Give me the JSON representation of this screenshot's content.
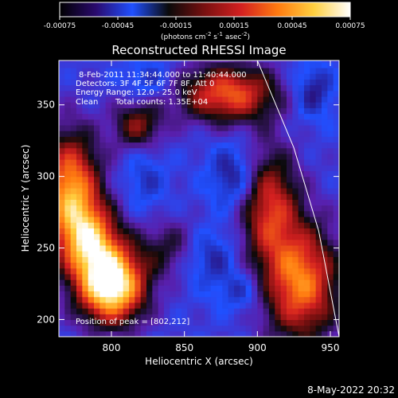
{
  "chart_data": {
    "type": "heatmap",
    "title": "Reconstructed RHESSI Image",
    "xlabel": "Heliocentric X (arcsec)",
    "ylabel": "Heliocentric Y (arcsec)",
    "xlim": [
      764,
      956
    ],
    "ylim": [
      188,
      381
    ],
    "x_ticks": [
      "800",
      "850",
      "900",
      "950"
    ],
    "y_ticks": [
      "200",
      "250",
      "300",
      "350"
    ],
    "colorbar": {
      "min": -0.00075,
      "max": 0.00075,
      "ticks": [
        "-0.00075",
        "-0.00045",
        "-0.00015",
        "0.00015",
        "0.00045",
        "0.00075"
      ],
      "label_main": "(photons cm",
      "label_sup1": "-2",
      "label_mid1": " s",
      "label_sup2": "-1",
      "label_mid2": " asec",
      "label_sup3": "-2",
      "label_end": ")",
      "scale": [
        "#000000",
        "#2a0a6e",
        "#2050ff",
        "#0a0a0a",
        "#7a1010",
        "#d42020",
        "#ff7a10",
        "#ffd040",
        "#ffffff"
      ]
    },
    "annotations": {
      "time_range": "8-Feb-2011 11:34:44.000 to 11:40:44.000",
      "detectors": "Detectors: 3F 4F 5F 6F 7F 8F, Att 0",
      "energy_range": "Energy Range: 12.0 - 25.0 keV",
      "algorithm": "Clean",
      "total_counts": "Total counts: 1.35E+04",
      "peak_position": "Position of peak = [802,212]"
    },
    "limb_curve": [
      [
        900,
        381
      ],
      [
        925,
        320
      ],
      [
        942,
        262
      ],
      [
        956,
        188
      ]
    ],
    "sources": [
      {
        "x": 772,
        "y": 290,
        "intensity": 0.55,
        "sx": 14,
        "sy": 28
      },
      {
        "x": 800,
        "y": 224,
        "intensity": 0.75,
        "sx": 16,
        "sy": 18
      },
      {
        "x": 786,
        "y": 255,
        "intensity": 0.45,
        "sx": 14,
        "sy": 18
      },
      {
        "x": 930,
        "y": 226,
        "intensity": 0.5,
        "sx": 18,
        "sy": 28
      },
      {
        "x": 908,
        "y": 280,
        "intensity": 0.38,
        "sx": 14,
        "sy": 28
      },
      {
        "x": 880,
        "y": 358,
        "intensity": 0.45,
        "sx": 24,
        "sy": 14
      },
      {
        "x": 818,
        "y": 336,
        "intensity": 0.28,
        "sx": 12,
        "sy": 12
      },
      {
        "x": 846,
        "y": 250,
        "intensity": 0.22,
        "sx": 18,
        "sy": 14
      }
    ],
    "holes": [
      {
        "x": 884,
        "y": 300,
        "depth": 0.6,
        "sx": 12,
        "sy": 16
      },
      {
        "x": 864,
        "y": 246,
        "depth": 0.7,
        "sx": 14,
        "sy": 14
      },
      {
        "x": 938,
        "y": 360,
        "depth": 0.55,
        "sx": 10,
        "sy": 14
      },
      {
        "x": 826,
        "y": 368,
        "depth": 0.4,
        "sx": 12,
        "sy": 10
      },
      {
        "x": 823,
        "y": 298,
        "depth": 0.35,
        "sx": 10,
        "sy": 16
      },
      {
        "x": 888,
        "y": 220,
        "depth": 0.4,
        "sx": 12,
        "sy": 10
      }
    ]
  },
  "footer": {
    "timestamp": "8-May-2022 20:32"
  }
}
